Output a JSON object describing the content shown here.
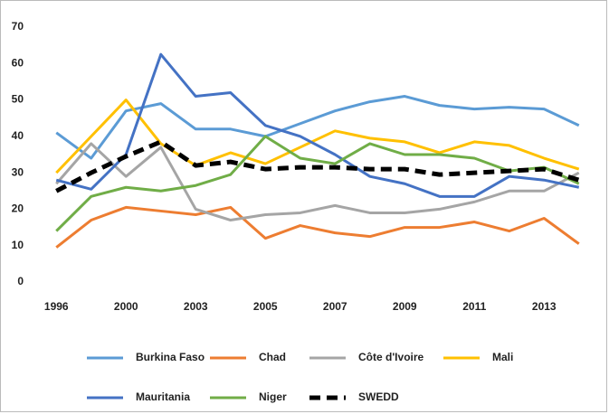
{
  "chart_data": {
    "type": "line",
    "categories": [
      "1996",
      null,
      "2000",
      null,
      "2003",
      null,
      "2005",
      null,
      "2007",
      null,
      "2009",
      null,
      "2011",
      null,
      "2013",
      null
    ],
    "ylim": [
      0,
      70
    ],
    "yticks": [
      0,
      10,
      20,
      30,
      40,
      50,
      60,
      70
    ],
    "grid": false,
    "legend": "bottom",
    "series": [
      {
        "name": "Burkina Faso",
        "color": "#5b9bd5",
        "values": [
          41,
          34,
          47,
          49,
          42,
          42,
          40,
          43.5,
          47,
          49.5,
          51,
          48.5,
          47.5,
          48,
          47.5,
          43
        ]
      },
      {
        "name": "Chad",
        "color": "#ed7d31",
        "values": [
          9.5,
          17,
          20.5,
          19.5,
          18.5,
          20.5,
          12,
          15.5,
          13.5,
          12.5,
          15,
          15,
          16.5,
          14,
          17.5,
          10.5
        ]
      },
      {
        "name": "Côte d'Ivoire",
        "color": "#a5a5a5",
        "values": [
          27,
          38,
          29,
          37,
          20,
          17,
          18.5,
          19,
          21,
          19,
          19,
          20,
          22,
          25,
          25,
          30
        ]
      },
      {
        "name": "Mali",
        "color": "#ffc000",
        "values": [
          30,
          40,
          50,
          38,
          32,
          35.5,
          32.5,
          37,
          41.5,
          39.5,
          38.5,
          35.5,
          38.5,
          37.5,
          34,
          31
        ]
      },
      {
        "name": "Mauritania",
        "color": "#4472c4",
        "values": [
          28,
          25.5,
          35,
          62.5,
          51,
          52,
          43,
          40,
          35,
          29,
          27,
          23.5,
          23.5,
          29,
          28,
          26
        ]
      },
      {
        "name": "Niger",
        "color": "#70ad47",
        "values": [
          14,
          23.5,
          26,
          25,
          26.5,
          29.5,
          40,
          34,
          32.5,
          38,
          35,
          35,
          34,
          30.5,
          31.5,
          27
        ]
      },
      {
        "name": "SWEDD",
        "color": "#000000",
        "dashed": true,
        "values": [
          25,
          30,
          34.5,
          38.5,
          32,
          33,
          31,
          31.5,
          31.5,
          31,
          31,
          29.5,
          30,
          30.5,
          31,
          28
        ]
      }
    ]
  }
}
